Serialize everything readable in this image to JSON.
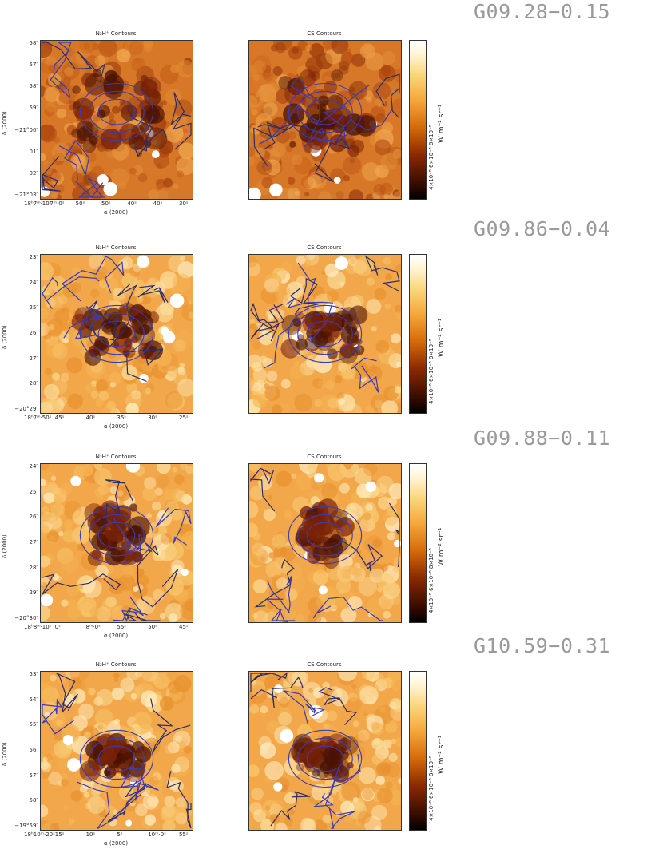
{
  "rows": [
    {
      "source": "G09.28−0.15",
      "left_title": "N₂H⁺ Contours",
      "right_title": "CS Contours",
      "yticks": [
        "58′",
        "57′",
        "58′",
        "59′",
        "−21°00′",
        "01′",
        "02′",
        "−21°03′"
      ],
      "xticks": [
        "18ʰ7ᵐ·10ˢ",
        "7ᵐ·0ˢ",
        "50ˢ",
        "50ˢ",
        "40ˢ",
        "40ˢ",
        "30ˢ"
      ],
      "cbar_ticks": "4×10⁻⁸   6×10⁻⁸   8×10⁻⁸",
      "ylabel": "δ (2000)",
      "xlabel": "α (2000)",
      "cbar_unit": "W m⁻² sr⁻¹"
    },
    {
      "source": "G09.86−0.04",
      "left_title": "N₂H⁺ Contours",
      "right_title": "CS Contours",
      "yticks": [
        "23′",
        "24′",
        "25′",
        "26′",
        "27′",
        "28′",
        "−20°29′"
      ],
      "xticks": [
        "18ʰ7ᵐ·50ˢ",
        "45ˢ",
        "40ˢ",
        "35ˢ",
        "30ˢ",
        "25ˢ"
      ],
      "cbar_ticks": "4×10⁻⁸   6×10⁻⁸   8×10⁻⁸",
      "ylabel": "δ (2000)",
      "xlabel": "α (2000)",
      "cbar_unit": "W m⁻² sr⁻¹"
    },
    {
      "source": "G09.88−0.11",
      "left_title": "N₂H⁺ Contours",
      "right_title": "CS Contours",
      "yticks": [
        "24′",
        "25′",
        "26′",
        "27′",
        "28′",
        "29′",
        "−20°30′"
      ],
      "xticks": [
        "18ʰ8ᵐ·10ˢ",
        "0ˢ",
        "8ᵐ·0ˢ",
        "55ˢ",
        "50ˢ",
        "45ˢ"
      ],
      "cbar_ticks": "4×10⁻⁸   6×10⁻⁸   8×10⁻⁸",
      "ylabel": "δ (2000)",
      "xlabel": "α (2000)",
      "cbar_unit": "W m⁻² sr⁻¹"
    },
    {
      "source": "G10.59−0.31",
      "left_title": "N₂H⁺ Contours",
      "right_title": "CS Contours",
      "yticks": [
        "53′",
        "54′",
        "55′",
        "56′",
        "57′",
        "58′",
        "−19°59′"
      ],
      "xticks": [
        "18ʰ10ᵐ·20ˢ",
        "15ˢ",
        "10ˢ",
        "5ˢ",
        "10ᵐ·0ˢ",
        "55ˢ"
      ],
      "cbar_ticks": "4×10⁻⁸   6×10⁻⁸   8×10⁻⁸",
      "ylabel": "δ (2000)",
      "xlabel": "α (2000)",
      "cbar_unit": "W m⁻² sr⁻¹"
    }
  ],
  "colors": {
    "contour": "#3b3bb0",
    "frame": "#333333"
  }
}
